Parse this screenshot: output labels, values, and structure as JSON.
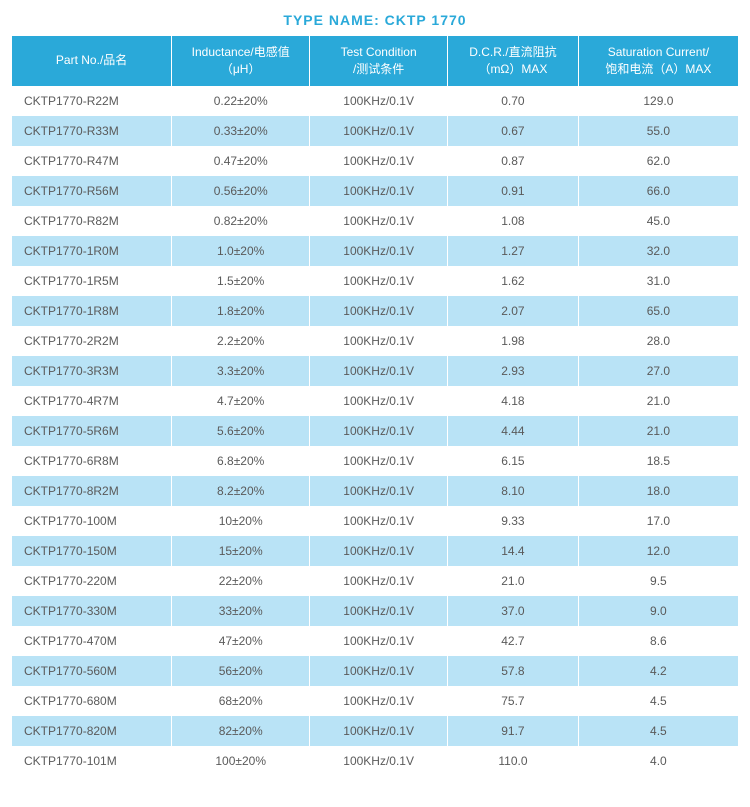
{
  "title_prefix": "TYPE NAME: ",
  "title_value": "CKTP 1770",
  "colors": {
    "title": "#2aa9d9",
    "header_bg": "#2aa9d9",
    "header_text": "#ffffff",
    "row_odd": "#ffffff",
    "row_even": "#b9e3f6",
    "cell_text": "#5a5a5a",
    "border": "#ffffff"
  },
  "fontsize": {
    "title": 14,
    "header": 12,
    "cell": 12
  },
  "columns": [
    "Part No./品名",
    "Inductance/电感值（μH）",
    "Test Condition /测试条件",
    "D.C.R./直流阻抗（mΩ）MAX",
    "Saturation Current/饱和电流（A）MAX"
  ],
  "rows": [
    [
      "CKTP1770-R22M",
      "0.22±20%",
      "100KHz/0.1V",
      "0.70",
      "129.0"
    ],
    [
      "CKTP1770-R33M",
      "0.33±20%",
      "100KHz/0.1V",
      "0.67",
      "55.0"
    ],
    [
      "CKTP1770-R47M",
      "0.47±20%",
      "100KHz/0.1V",
      "0.87",
      "62.0"
    ],
    [
      "CKTP1770-R56M",
      "0.56±20%",
      "100KHz/0.1V",
      "0.91",
      "66.0"
    ],
    [
      "CKTP1770-R82M",
      "0.82±20%",
      "100KHz/0.1V",
      "1.08",
      "45.0"
    ],
    [
      "CKTP1770-1R0M",
      "1.0±20%",
      "100KHz/0.1V",
      "1.27",
      "32.0"
    ],
    [
      "CKTP1770-1R5M",
      "1.5±20%",
      "100KHz/0.1V",
      "1.62",
      "31.0"
    ],
    [
      "CKTP1770-1R8M",
      "1.8±20%",
      "100KHz/0.1V",
      "2.07",
      "65.0"
    ],
    [
      "CKTP1770-2R2M",
      "2.2±20%",
      "100KHz/0.1V",
      "1.98",
      "28.0"
    ],
    [
      "CKTP1770-3R3M",
      "3.3±20%",
      "100KHz/0.1V",
      "2.93",
      "27.0"
    ],
    [
      "CKTP1770-4R7M",
      "4.7±20%",
      "100KHz/0.1V",
      "4.18",
      "21.0"
    ],
    [
      "CKTP1770-5R6M",
      "5.6±20%",
      "100KHz/0.1V",
      "4.44",
      "21.0"
    ],
    [
      "CKTP1770-6R8M",
      "6.8±20%",
      "100KHz/0.1V",
      "6.15",
      "18.5"
    ],
    [
      "CKTP1770-8R2M",
      "8.2±20%",
      "100KHz/0.1V",
      "8.10",
      "18.0"
    ],
    [
      "CKTP1770-100M",
      "10±20%",
      "100KHz/0.1V",
      "9.33",
      "17.0"
    ],
    [
      "CKTP1770-150M",
      "15±20%",
      "100KHz/0.1V",
      "14.4",
      "12.0"
    ],
    [
      "CKTP1770-220M",
      "22±20%",
      "100KHz/0.1V",
      "21.0",
      "9.5"
    ],
    [
      "CKTP1770-330M",
      "33±20%",
      "100KHz/0.1V",
      "37.0",
      "9.0"
    ],
    [
      "CKTP1770-470M",
      "47±20%",
      "100KHz/0.1V",
      "42.7",
      "8.6"
    ],
    [
      "CKTP1770-560M",
      "56±20%",
      "100KHz/0.1V",
      "57.8",
      "4.2"
    ],
    [
      "CKTP1770-680M",
      "68±20%",
      "100KHz/0.1V",
      "75.7",
      "4.5"
    ],
    [
      "CKTP1770-820M",
      "82±20%",
      "100KHz/0.1V",
      "91.7",
      "4.5"
    ],
    [
      "CKTP1770-101M",
      "100±20%",
      "100KHz/0.1V",
      "110.0",
      "4.0"
    ]
  ]
}
